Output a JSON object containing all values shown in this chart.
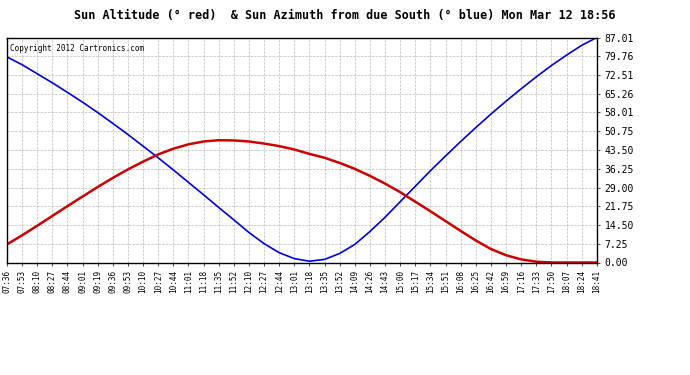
{
  "title": "Sun Altitude (° red)  & Sun Azimuth from due South (° blue) Mon Mar 12 18:56",
  "copyright_text": "Copyright 2012 Cartronics.com",
  "yticks": [
    0.0,
    7.25,
    14.5,
    21.75,
    29.0,
    36.25,
    43.5,
    50.75,
    58.01,
    65.26,
    72.51,
    79.76,
    87.01
  ],
  "ymin": 0.0,
  "ymax": 87.01,
  "x_labels": [
    "07:36",
    "07:53",
    "08:10",
    "08:27",
    "08:44",
    "09:01",
    "09:19",
    "09:36",
    "09:53",
    "10:10",
    "10:27",
    "10:44",
    "11:01",
    "11:18",
    "11:35",
    "11:52",
    "12:10",
    "12:27",
    "12:44",
    "13:01",
    "13:18",
    "13:35",
    "13:52",
    "14:09",
    "14:26",
    "14:43",
    "15:00",
    "15:17",
    "15:34",
    "15:51",
    "16:08",
    "16:25",
    "16:42",
    "16:59",
    "17:16",
    "17:33",
    "17:50",
    "18:07",
    "18:24",
    "18:41"
  ],
  "background_color": "#ffffff",
  "grid_color": "#aaaaaa",
  "blue_color": "#0000dd",
  "red_color": "#cc0000",
  "title_bg": "#cccccc",
  "blue_data_y": [
    79.5,
    76.5,
    73.0,
    69.5,
    65.8,
    62.0,
    58.0,
    53.8,
    49.5,
    45.0,
    40.5,
    35.8,
    31.0,
    26.2,
    21.3,
    16.5,
    11.6,
    7.3,
    3.8,
    1.5,
    0.5,
    1.2,
    3.5,
    7.0,
    12.0,
    17.5,
    23.5,
    29.5,
    35.5,
    41.2,
    46.8,
    52.2,
    57.4,
    62.4,
    67.2,
    71.8,
    76.2,
    80.2,
    84.0,
    87.01
  ],
  "red_data_y": [
    7.0,
    10.5,
    14.2,
    18.0,
    21.8,
    25.5,
    29.2,
    32.7,
    36.0,
    39.0,
    41.8,
    44.0,
    45.7,
    46.8,
    47.3,
    47.2,
    46.8,
    46.0,
    45.0,
    43.7,
    42.0,
    40.5,
    38.5,
    36.2,
    33.5,
    30.5,
    27.2,
    23.5,
    19.8,
    16.0,
    12.2,
    8.5,
    5.2,
    2.8,
    1.2,
    0.3,
    0.0,
    0.0,
    0.0,
    0.0
  ]
}
